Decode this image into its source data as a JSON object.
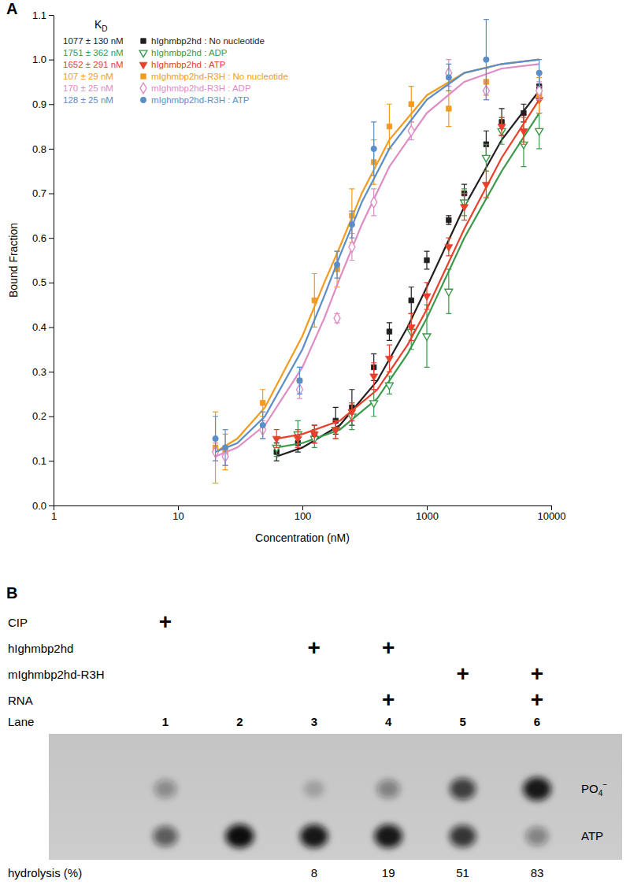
{
  "chart_data": {
    "type": "scatter",
    "panel_label": "A",
    "x_label": "Concentration (nM)",
    "y_label": "Bound Fraction",
    "log": "x",
    "xlim": [
      1,
      10000
    ],
    "xticks": [
      1,
      10,
      100,
      1000,
      10000
    ],
    "ylim": [
      0,
      1.1
    ],
    "yticks": [
      {
        "value": 0,
        "label": "0.0"
      },
      0.1,
      0.2,
      0.3,
      0.4,
      0.5,
      0.6,
      0.7,
      0.8,
      0.9,
      {
        "value": 1,
        "label": "1.0"
      },
      1.1
    ],
    "legend": "top-left",
    "legend_title": "K",
    "legend_title_sub": "D",
    "series": [
      {
        "name": "hIghmbp2hd : No nucleotide",
        "kd_label": "1077 ± 130 nM",
        "color": "#231f20",
        "marker": "square",
        "x": [
          62,
          92,
          125,
          185,
          250,
          375,
          500,
          750,
          1000,
          1500,
          2000,
          3000,
          4000,
          6000,
          8000
        ],
        "values": [
          0.12,
          0.14,
          0.16,
          0.19,
          0.22,
          0.31,
          0.39,
          0.46,
          0.55,
          0.64,
          0.7,
          0.81,
          0.86,
          0.88,
          0.94
        ],
        "errors": [
          0.02,
          0.02,
          0.02,
          0.03,
          0.04,
          0.03,
          0.02,
          0.03,
          0.02,
          0.01,
          0.02,
          0.03,
          0.03,
          0.02,
          0.03
        ],
        "fit": {
          "x": [
            62,
            100,
            200,
            400,
            700,
            1000,
            2000,
            4000,
            8000
          ],
          "values": [
            0.11,
            0.13,
            0.18,
            0.28,
            0.4,
            0.49,
            0.67,
            0.82,
            0.93
          ]
        }
      },
      {
        "name": "hIghmbp2hd : ADP",
        "kd_label": "1751 ± 362 nM",
        "color": "#3b9a4a",
        "marker": "triangle-down-open",
        "x": [
          62,
          92,
          125,
          185,
          250,
          375,
          500,
          750,
          1000,
          1500,
          2000,
          3000,
          4000,
          6000,
          8000
        ],
        "values": [
          0.13,
          0.16,
          0.15,
          0.17,
          0.2,
          0.23,
          0.27,
          0.39,
          0.38,
          0.48,
          0.68,
          0.78,
          0.84,
          0.81,
          0.84
        ],
        "errors": [
          0.02,
          0.03,
          0.02,
          0.02,
          0.03,
          0.03,
          0.02,
          0.04,
          0.07,
          0.05,
          0.03,
          0.03,
          0.03,
          0.05,
          0.04
        ],
        "fit": {
          "x": [
            62,
            100,
            200,
            400,
            700,
            1000,
            2000,
            4000,
            8000
          ],
          "values": [
            0.13,
            0.14,
            0.17,
            0.24,
            0.34,
            0.42,
            0.6,
            0.75,
            0.88
          ]
        }
      },
      {
        "name": "hIghmbp2hd : ATP",
        "kd_label": "1652 ± 291 nM",
        "color": "#e8402a",
        "marker": "triangle-down",
        "x": [
          62,
          92,
          125,
          185,
          250,
          375,
          500,
          750,
          1000,
          1500,
          2000,
          3000,
          4000,
          6000,
          8000
        ],
        "values": [
          0.15,
          0.15,
          0.16,
          0.17,
          0.21,
          0.29,
          0.33,
          0.4,
          0.47,
          0.58,
          0.67,
          0.72,
          0.85,
          0.84,
          0.91
        ],
        "errors": [
          0.02,
          0.02,
          0.02,
          0.02,
          0.02,
          0.03,
          0.03,
          0.03,
          0.03,
          0.02,
          0.03,
          0.03,
          0.02,
          0.03,
          0.03
        ],
        "fit": {
          "x": [
            62,
            100,
            200,
            400,
            700,
            1000,
            2000,
            4000,
            8000
          ],
          "values": [
            0.15,
            0.16,
            0.19,
            0.26,
            0.36,
            0.44,
            0.62,
            0.78,
            0.91
          ]
        }
      },
      {
        "name": "mIghmbp2hd-R3H : No nucleotide",
        "kd_label": "107 ± 29 nM",
        "color": "#f39b1f",
        "marker": "square",
        "x": [
          20,
          24,
          48,
          95,
          125,
          190,
          250,
          375,
          500,
          750,
          1500,
          3000,
          8000
        ],
        "values": [
          0.13,
          0.12,
          0.23,
          0.28,
          0.46,
          0.53,
          0.65,
          0.77,
          0.85,
          0.9,
          0.89,
          0.95,
          0.92
        ],
        "errors": [
          0.08,
          0.04,
          0.03,
          0.03,
          0.06,
          0.04,
          0.06,
          0.05,
          0.05,
          0.04,
          0.04,
          0.03,
          0.04
        ],
        "fit": {
          "x": [
            20,
            30,
            50,
            100,
            150,
            200,
            300,
            500,
            1000,
            2000,
            4000,
            8000
          ],
          "values": [
            0.12,
            0.15,
            0.22,
            0.38,
            0.5,
            0.58,
            0.7,
            0.82,
            0.92,
            0.97,
            0.99,
            1.0
          ]
        }
      },
      {
        "name": "mIghmbp2hd-R3H : ADP",
        "kd_label": "170 ± 25 nM",
        "color": "#e08cc4",
        "marker": "diamond-open",
        "x": [
          20,
          24,
          48,
          95,
          190,
          250,
          375,
          750,
          1500,
          3000,
          8000
        ],
        "values": [
          0.12,
          0.11,
          0.17,
          0.26,
          0.42,
          0.58,
          0.68,
          0.84,
          0.97,
          0.93,
          0.93
        ],
        "errors": [
          0.02,
          0.02,
          0.02,
          0.02,
          0.01,
          0.03,
          0.03,
          0.02,
          0.03,
          0.02,
          0.02
        ],
        "fit": {
          "x": [
            20,
            30,
            50,
            100,
            150,
            200,
            300,
            500,
            1000,
            2000,
            4000,
            8000
          ],
          "values": [
            0.11,
            0.13,
            0.18,
            0.31,
            0.42,
            0.51,
            0.63,
            0.76,
            0.88,
            0.95,
            0.98,
            0.99
          ]
        }
      },
      {
        "name": "mIghmbp2hd-R3H : ATP",
        "kd_label": "128 ± 25 nM",
        "color": "#5b8ec8",
        "marker": "circle",
        "x": [
          20,
          24,
          48,
          95,
          190,
          250,
          375,
          1500,
          3000,
          8000
        ],
        "values": [
          0.15,
          0.13,
          0.18,
          0.28,
          0.54,
          0.63,
          0.8,
          0.96,
          1.0,
          0.97
        ],
        "errors": [
          0.05,
          0.04,
          0.03,
          0.03,
          0.03,
          0.03,
          0.06,
          0.03,
          0.09,
          0.03
        ],
        "fit": {
          "x": [
            20,
            30,
            50,
            100,
            150,
            200,
            300,
            500,
            1000,
            2000,
            4000,
            8000
          ],
          "values": [
            0.12,
            0.14,
            0.2,
            0.35,
            0.47,
            0.56,
            0.68,
            0.8,
            0.91,
            0.97,
            0.99,
            1.0
          ]
        }
      }
    ]
  },
  "gel": {
    "panel_label": "B",
    "symbol": "+",
    "rows": [
      {
        "label": "CIP",
        "marked": [
          true,
          false,
          false,
          false,
          false,
          false
        ]
      },
      {
        "label": "hIghmbp2hd",
        "marked": [
          false,
          false,
          true,
          true,
          false,
          false
        ]
      },
      {
        "label": "mIghmbp2hd-R3H",
        "marked": [
          false,
          false,
          false,
          false,
          true,
          true
        ]
      },
      {
        "label": "RNA",
        "marked": [
          false,
          false,
          false,
          true,
          false,
          true
        ]
      }
    ],
    "lane_label": "Lane",
    "lanes": [
      1,
      2,
      3,
      4,
      5,
      6
    ],
    "spots": [
      {
        "label": "PO",
        "subscript": "4",
        "superscript": "−",
        "intensity": [
          0.35,
          0,
          0.2,
          0.4,
          0.75,
          0.95
        ]
      },
      {
        "label": "ATP",
        "intensity": [
          0.6,
          1,
          0.95,
          0.95,
          0.8,
          0.4
        ]
      }
    ],
    "hydrolysis_label": "hydrolysis (%)",
    "hydrolysis": [
      null,
      null,
      8,
      19,
      51,
      83
    ]
  }
}
